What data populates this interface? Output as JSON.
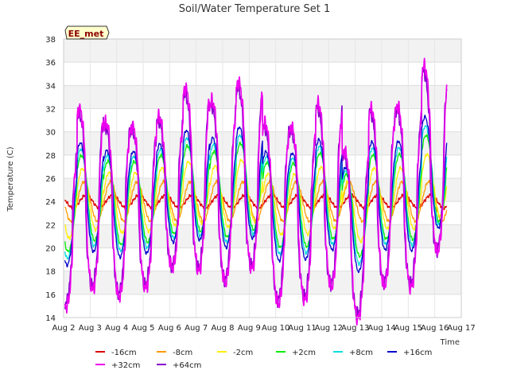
{
  "chart_data": {
    "type": "line",
    "title": "Soil/Water Temperature Set 1",
    "xlabel": "Time",
    "ylabel": "Temperature (C)",
    "badge": "EE_met",
    "xlim": [
      2,
      17
    ],
    "ylim": [
      14,
      38
    ],
    "x_ticks": [
      {
        "value": 2,
        "label": "Aug 2"
      },
      {
        "value": 3,
        "label": "Aug 3"
      },
      {
        "value": 4,
        "label": "Aug 4"
      },
      {
        "value": 5,
        "label": "Aug 5"
      },
      {
        "value": 6,
        "label": "Aug 6"
      },
      {
        "value": 7,
        "label": "Aug 7"
      },
      {
        "value": 8,
        "label": "Aug 8"
      },
      {
        "value": 9,
        "label": "Aug 9"
      },
      {
        "value": 10,
        "label": "Aug 10"
      },
      {
        "value": 11,
        "label": "Aug 11"
      },
      {
        "value": 12,
        "label": "Aug 12"
      },
      {
        "value": 13,
        "label": "Aug 13"
      },
      {
        "value": 14,
        "label": "Aug 14"
      },
      {
        "value": 15,
        "label": "Aug 15"
      },
      {
        "value": 16,
        "label": "Aug 16"
      },
      {
        "value": 17,
        "label": "Aug 17"
      }
    ],
    "y_ticks": [
      14,
      16,
      18,
      20,
      22,
      24,
      26,
      28,
      30,
      32,
      34,
      36,
      38
    ],
    "grid": true,
    "legend_position": "bottom",
    "day_peaks": [
      {
        "day": 2,
        "max": 27,
        "min": 16.5
      },
      {
        "day": 3,
        "max": 32.6,
        "min": 15.8
      },
      {
        "day": 4,
        "max": 30.8,
        "min": 15.8
      },
      {
        "day": 5,
        "max": 29.2,
        "min": 17.8
      },
      {
        "day": 6,
        "max": 29,
        "min": 20.6
      },
      {
        "day": 7,
        "max": 34.6,
        "min": 17.2
      },
      {
        "day": 8,
        "max": 33.5,
        "min": 16.2
      },
      {
        "day": 9,
        "max": 35.5,
        "min": 17
      },
      {
        "day": 10,
        "max": 31.4,
        "min": 14.5
      },
      {
        "day": 11,
        "max": 30.3,
        "min": 15.6
      },
      {
        "day": 12,
        "max": 33.4,
        "min": 15.7
      },
      {
        "day": 13,
        "max": 27.6,
        "min": 14.6
      },
      {
        "day": 14,
        "max": 32.3,
        "min": 16.5
      },
      {
        "day": 15,
        "max": 33,
        "min": 15.8
      },
      {
        "day": 16,
        "max": 36.9,
        "min": 18.5
      }
    ],
    "series": [
      {
        "name": "-16cm",
        "color": "#dd0000",
        "mean": 24.0,
        "amplitude": 0.55,
        "phase": 0.25
      },
      {
        "name": "-8cm",
        "color": "#ff9900",
        "mean": 24.0,
        "amplitude": 1.7,
        "phase": 0.17
      },
      {
        "name": "-2cm",
        "color": "#ffee00",
        "mean": 24.2,
        "amplitude": 2.6,
        "phase": 0.11
      },
      {
        "name": "+2cm",
        "color": "#00ee00",
        "mean": 24.4,
        "amplitude": 3.6,
        "phase": 0.07
      },
      {
        "name": "+8cm",
        "color": "#00dddd",
        "mean": 24.5,
        "amplitude": 4.1,
        "phase": 0.05
      },
      {
        "name": "+16cm",
        "color": "#0000cc",
        "mean": 24.6,
        "amplitude": 4.6,
        "phase": 0.03
      },
      {
        "name": "+32cm",
        "color": "#ee00ee",
        "mean": 23.8,
        "amplitude": 7.5,
        "phase": 0.0
      },
      {
        "name": "+64cm",
        "color": "#8800cc",
        "mean": 23.4,
        "amplitude": 7.2,
        "phase": -0.02
      }
    ]
  }
}
